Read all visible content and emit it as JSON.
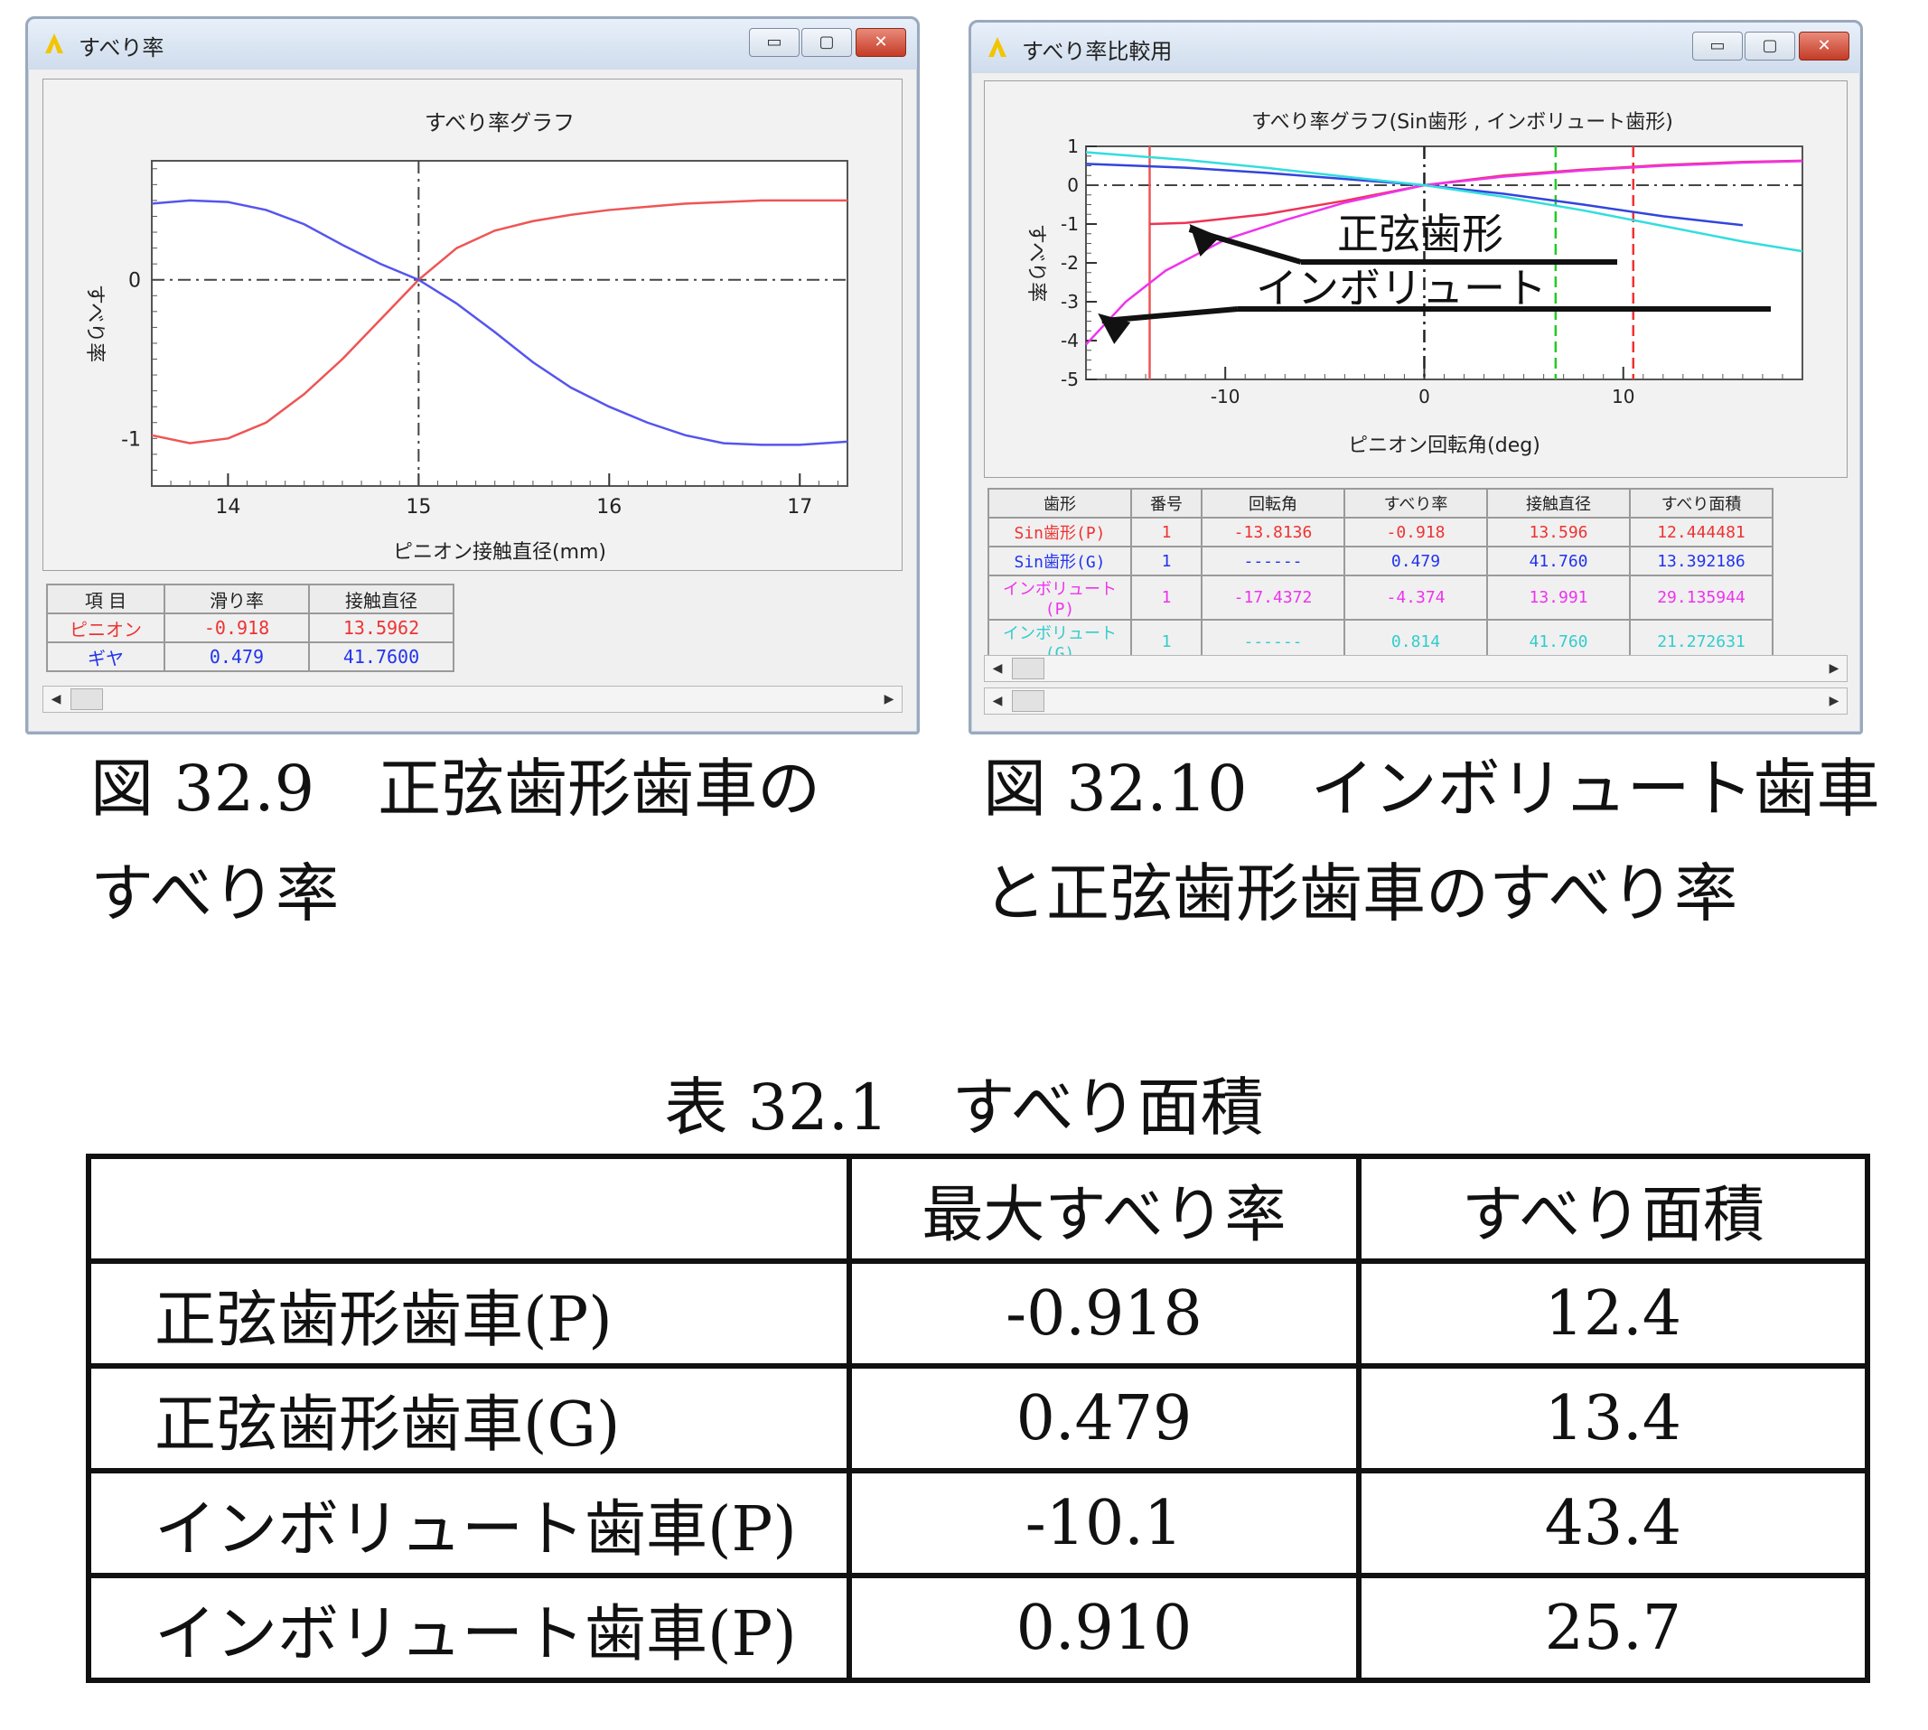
{
  "window1": {
    "title": "すべり率",
    "btn_min": "▭",
    "btn_max": "▢",
    "btn_close": "✕",
    "chart_data": {
      "type": "line",
      "title": "すべり率グラフ",
      "xlabel": "ピニオン接触直径(mm)",
      "ylabel": "すべり率",
      "xlim": [
        13.6,
        17.25
      ],
      "ylim": [
        -1.3,
        0.75
      ],
      "xticks": [
        "14",
        "15",
        "16",
        "17"
      ],
      "yticks": [
        "0",
        "-1"
      ],
      "series": [
        {
          "color": "#ee5555",
          "x": [
            13.6,
            13.8,
            14.0,
            14.2,
            14.4,
            14.6,
            14.8,
            15.0,
            15.2,
            15.4,
            15.6,
            15.8,
            16.0,
            16.2,
            16.4,
            16.6,
            16.8,
            17.0,
            17.25
          ],
          "y": [
            -0.98,
            -1.03,
            -1.0,
            -0.9,
            -0.72,
            -0.5,
            -0.25,
            0.0,
            0.2,
            0.31,
            0.37,
            0.41,
            0.44,
            0.46,
            0.48,
            0.49,
            0.5,
            0.5,
            0.5
          ]
        },
        {
          "color": "#5555ee",
          "x": [
            13.6,
            13.8,
            14.0,
            14.2,
            14.4,
            14.6,
            14.8,
            15.0,
            15.2,
            15.4,
            15.6,
            15.8,
            16.0,
            16.2,
            16.4,
            16.6,
            16.8,
            17.0,
            17.25
          ],
          "y": [
            0.48,
            0.5,
            0.49,
            0.44,
            0.35,
            0.22,
            0.1,
            0.0,
            -0.15,
            -0.33,
            -0.52,
            -0.68,
            -0.8,
            -0.9,
            -0.98,
            -1.03,
            -1.04,
            -1.04,
            -1.02
          ]
        }
      ]
    },
    "table": {
      "headers": [
        "項 目",
        "滑り率",
        "接触直径"
      ],
      "rows": [
        {
          "name": "ピニオン",
          "rate": "-0.918",
          "diameter": "13.5962",
          "color": "#ee3333"
        },
        {
          "name": "ギヤ",
          "rate": "0.479",
          "diameter": "41.7600",
          "color": "#2233ee"
        }
      ]
    },
    "scroll_left": "◀",
    "scroll_right": "▶"
  },
  "window2": {
    "title": "すべり率比較用",
    "btn_min": "▭",
    "btn_max": "▢",
    "btn_close": "✕",
    "chart_data": {
      "type": "line",
      "title": "すべり率グラフ(Sin歯形 , インボリュート歯形)",
      "xlabel": "ピニオン回転角(deg)",
      "ylabel": "すべり率",
      "xlim": [
        -17,
        19
      ],
      "ylim": [
        -5,
        1
      ],
      "xticks": [
        "-10",
        "0",
        "10"
      ],
      "yticks": [
        "1",
        "0",
        "-1",
        "-2",
        "-3",
        "-4",
        "-5"
      ],
      "series": [
        {
          "color": "#ee3355",
          "x": [
            -13.8,
            -12,
            -8,
            -4,
            0,
            4,
            8,
            12,
            16,
            19
          ],
          "y": [
            -1.0,
            -0.97,
            -0.75,
            -0.4,
            0.0,
            0.25,
            0.4,
            0.52,
            0.6,
            0.63
          ]
        },
        {
          "color": "#3344dd",
          "x": [
            -17,
            -12,
            -8,
            -4,
            0,
            4,
            8,
            12,
            16
          ],
          "y": [
            0.55,
            0.45,
            0.32,
            0.16,
            0.0,
            -0.22,
            -0.5,
            -0.8,
            -1.03
          ]
        },
        {
          "color": "#ee33ee",
          "x": [
            -17,
            -15,
            -13,
            -10,
            -7,
            -4,
            0,
            4,
            8,
            12,
            16,
            19
          ],
          "y": [
            -4.1,
            -3.0,
            -2.2,
            -1.4,
            -0.9,
            -0.45,
            0.0,
            0.22,
            0.38,
            0.5,
            0.58,
            0.62
          ]
        },
        {
          "color": "#33dddd",
          "x": [
            -17,
            -12,
            -8,
            -4,
            0,
            4,
            8,
            12,
            16,
            19
          ],
          "y": [
            0.85,
            0.65,
            0.45,
            0.22,
            0.0,
            -0.3,
            -0.65,
            -1.05,
            -1.45,
            -1.7
          ]
        }
      ],
      "vlines": [
        {
          "x": -13.8,
          "color": "#ee5555",
          "style": "solid"
        },
        {
          "x": 0,
          "color": "#222222",
          "style": "dashdot"
        },
        {
          "x": 6.6,
          "color": "#22cc22",
          "style": "dashed"
        },
        {
          "x": 10.5,
          "color": "#ee3333",
          "style": "dashed"
        }
      ],
      "annotations": [
        "正弦歯形",
        "インボリュート"
      ]
    },
    "table": {
      "headers": [
        "歯形",
        "番号",
        "回転角",
        "すべり率",
        "接触直径",
        "すべり面積"
      ],
      "rows": [
        {
          "cells": [
            "Sin歯形(P)",
            "1",
            "-13.8136",
            "-0.918",
            "13.596",
            "12.444481"
          ],
          "color": "#ee3333"
        },
        {
          "cells": [
            "Sin歯形(G)",
            "1",
            "------",
            "0.479",
            "41.760",
            "13.392186"
          ],
          "color": "#2233ee"
        },
        {
          "cells": [
            "インボリュート(P)",
            "1",
            "-17.4372",
            "-4.374",
            "13.991",
            "29.135944"
          ],
          "color": "#ee33ee"
        },
        {
          "cells": [
            "インボリュート(G)",
            "1",
            "------",
            "0.814",
            "41.760",
            "21.272631"
          ],
          "color": "#33cccc"
        }
      ]
    },
    "scroll_left": "◀",
    "scroll_right": "▶"
  },
  "captions": {
    "fig1_line1": "図 32.9　正弦歯形歯車の",
    "fig1_line2": "すべり率",
    "fig2_line1": "図 32.10　インボリュート歯車",
    "fig2_line2": "と正弦歯形歯車のすべり率"
  },
  "table_caption": "表 32.1　すべり面積",
  "main_table": {
    "headers": [
      "",
      "最大すべり率",
      "すべり面積"
    ],
    "rows": [
      [
        "正弦歯形歯車(P)",
        "-0.918",
        "12.4"
      ],
      [
        "正弦歯形歯車(G)",
        "0.479",
        "13.4"
      ],
      [
        "インボリュート歯車(P)",
        "-10.1",
        "43.4"
      ],
      [
        "インボリュート歯車(P)",
        "0.910",
        "25.7"
      ]
    ]
  }
}
